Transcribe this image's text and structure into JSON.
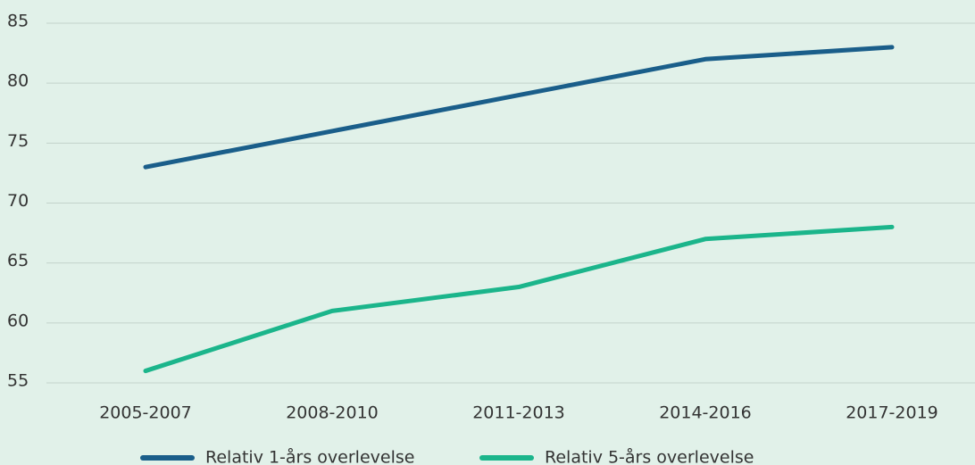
{
  "chart_data": {
    "type": "line",
    "categories": [
      "2005-2007",
      "2008-2010",
      "2011-2013",
      "2014-2016",
      "2017-2019"
    ],
    "series": [
      {
        "name": "Relativ 1-års overlevelse",
        "color": "#1a5e8a",
        "values": [
          73,
          76,
          79,
          82,
          83
        ]
      },
      {
        "name": "Relativ 5-års overlevelse",
        "color": "#1bb58b",
        "values": [
          56,
          61,
          63,
          67,
          68
        ]
      }
    ],
    "ylim": [
      55,
      85
    ],
    "yticks": [
      55,
      60,
      65,
      70,
      75,
      80,
      85
    ],
    "grid": true,
    "legend": "bottom"
  }
}
